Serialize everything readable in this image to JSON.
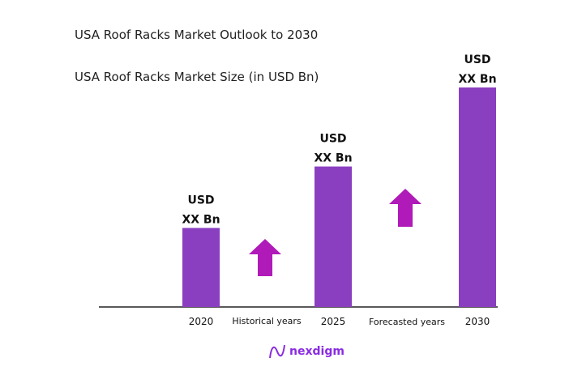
{
  "chart_data": {
    "type": "bar",
    "title": "USA Roof Racks Market Outlook to 2030",
    "subtitle": "USA Roof Racks Market Size (in USD Bn)",
    "categories": [
      "2020",
      "2025",
      "2030"
    ],
    "values": [
      36,
      64,
      100
    ],
    "data_labels": [
      [
        "USD",
        "XX Bn"
      ],
      [
        "USD",
        "XX Bn"
      ],
      [
        "USD",
        "XX Bn"
      ]
    ],
    "annotations": [
      "Historical years",
      "Forecasted years"
    ],
    "ylim": [
      0,
      100
    ],
    "grid": false,
    "bar_color": "#8a3fc0",
    "arrow_color": "#b01ab8"
  },
  "logo": {
    "text": "nexdigm"
  }
}
